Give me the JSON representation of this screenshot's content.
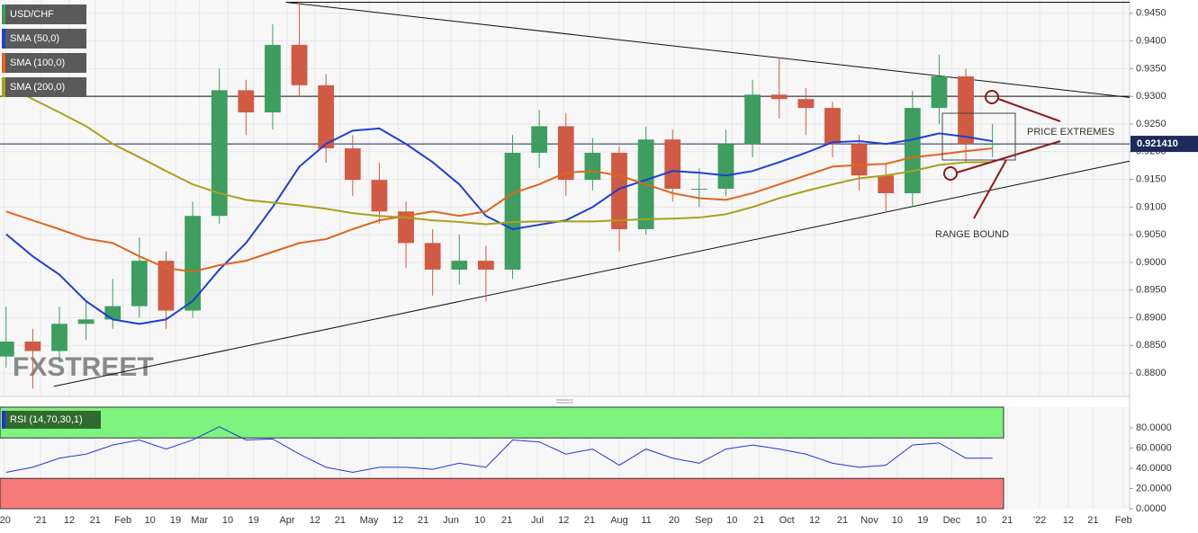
{
  "chart_data": [
    {
      "type": "candlestick",
      "symbol": "USD/CHF",
      "x": [
        -9,
        -2,
        5,
        12,
        19,
        26,
        33,
        40,
        47,
        54,
        61,
        68,
        75,
        82,
        89,
        96,
        103,
        110,
        117,
        124,
        131,
        138,
        145,
        152,
        159,
        166,
        173,
        180,
        187,
        194,
        201,
        208,
        215,
        222,
        229,
        236,
        243,
        250
      ],
      "open": [
        0.883,
        0.8857,
        0.884,
        0.8889,
        0.8897,
        0.8921,
        0.9003,
        0.8913,
        0.9084,
        0.9311,
        0.9271,
        0.9393,
        0.932,
        0.9206,
        0.9149,
        0.9092,
        0.9035,
        0.8987,
        0.9003,
        0.8987,
        0.9198,
        0.9246,
        0.9149,
        0.9198,
        0.906,
        0.9222,
        0.9133,
        0.9133,
        0.9214,
        0.9303,
        0.9295,
        0.9279,
        0.9214,
        0.9157,
        0.9125,
        0.9279,
        0.9336,
        0.9214
      ],
      "high": [
        0.892,
        0.888,
        0.892,
        0.893,
        0.897,
        0.9045,
        0.902,
        0.911,
        0.935,
        0.933,
        0.943,
        0.947,
        0.934,
        0.923,
        0.918,
        0.911,
        0.906,
        0.905,
        0.903,
        0.923,
        0.9275,
        0.927,
        0.9225,
        0.921,
        0.9245,
        0.924,
        0.917,
        0.924,
        0.933,
        0.937,
        0.9315,
        0.929,
        0.923,
        0.918,
        0.931,
        0.9375,
        0.935,
        0.925
      ],
      "low": [
        0.881,
        0.8772,
        0.882,
        0.886,
        0.888,
        0.89,
        0.888,
        0.89,
        0.907,
        0.923,
        0.924,
        0.93,
        0.918,
        0.912,
        0.907,
        0.899,
        0.894,
        0.896,
        0.893,
        0.897,
        0.917,
        0.912,
        0.913,
        0.902,
        0.905,
        0.911,
        0.91,
        0.912,
        0.919,
        0.926,
        0.923,
        0.919,
        0.913,
        0.909,
        0.91,
        0.925,
        0.918,
        0.919
      ],
      "close": [
        0.8857,
        0.884,
        0.8889,
        0.8897,
        0.8921,
        0.9003,
        0.8913,
        0.9084,
        0.9311,
        0.9271,
        0.9393,
        0.932,
        0.9206,
        0.9149,
        0.9092,
        0.9035,
        0.8987,
        0.9003,
        0.8987,
        0.9198,
        0.9246,
        0.9149,
        0.9198,
        0.906,
        0.9222,
        0.9133,
        0.9133,
        0.9214,
        0.9303,
        0.9295,
        0.9279,
        0.9214,
        0.9157,
        0.9125,
        0.9279,
        0.9336,
        0.9214,
        0.9214
      ],
      "color_up": "#3d9e5f",
      "color_down": "#d05a43",
      "series": [
        {
          "name": "SMA (50,0)",
          "color": "#1f3fd6",
          "values": [
            0.9051,
            0.9011,
            0.8978,
            0.893,
            0.8897,
            0.8889,
            0.8897,
            0.893,
            0.8987,
            0.9035,
            0.91,
            0.9173,
            0.9214,
            0.9238,
            0.9242,
            0.9214,
            0.9181,
            0.9141,
            0.9084,
            0.906,
            0.9068,
            0.9076,
            0.91,
            0.9133,
            0.9149,
            0.9165,
            0.9162,
            0.9157,
            0.9165,
            0.9181,
            0.9198,
            0.9217,
            0.9219,
            0.9214,
            0.9222,
            0.9233,
            0.9227,
            0.9219
          ]
        },
        {
          "name": "SMA (100,0)",
          "color": "#e0651e",
          "values": [
            0.9092,
            0.9076,
            0.906,
            0.9043,
            0.9035,
            0.9011,
            0.899,
            0.8983,
            0.8995,
            0.9003,
            0.9019,
            0.9035,
            0.9042,
            0.906,
            0.9076,
            0.9084,
            0.9092,
            0.9084,
            0.9092,
            0.9125,
            0.9141,
            0.9162,
            0.9165,
            0.9157,
            0.9141,
            0.9125,
            0.9116,
            0.9113,
            0.9125,
            0.9141,
            0.9157,
            0.9173,
            0.9176,
            0.9178,
            0.919,
            0.9195,
            0.9201,
            0.9206
          ]
        },
        {
          "name": "SMA (200,0)",
          "color": "#a8a11c",
          "values": [
            0.932,
            0.9295,
            0.9271,
            0.9246,
            0.9214,
            0.919,
            0.9165,
            0.9141,
            0.9125,
            0.9113,
            0.9108,
            0.9103,
            0.9097,
            0.9089,
            0.9084,
            0.9081,
            0.9076,
            0.9073,
            0.9069,
            0.9073,
            0.9074,
            0.9074,
            0.9074,
            0.9076,
            0.9078,
            0.9079,
            0.9081,
            0.9087,
            0.91,
            0.9116,
            0.9129,
            0.9141,
            0.9152,
            0.9157,
            0.9165,
            0.9176,
            0.9181,
            0.9181
          ]
        }
      ],
      "xlim": [
        -10.6,
        286
      ],
      "xticks": [
        {
          "value": -9.5,
          "label": "'20"
        },
        {
          "value": 0,
          "label": "'21"
        },
        {
          "value": 7.6,
          "label": "12"
        },
        {
          "value": 14.4,
          "label": "21"
        },
        {
          "value": 21.7,
          "label": "Feb"
        },
        {
          "value": 28.8,
          "label": "10"
        },
        {
          "value": 35.5,
          "label": "19"
        },
        {
          "value": 41.8,
          "label": "Mar"
        },
        {
          "value": 49.2,
          "label": "10"
        },
        {
          "value": 56,
          "label": "19"
        },
        {
          "value": 64.8,
          "label": "Apr"
        },
        {
          "value": 72.1,
          "label": "12"
        },
        {
          "value": 78.7,
          "label": "21"
        },
        {
          "value": 86.3,
          "label": "May"
        },
        {
          "value": 93.9,
          "label": "12"
        },
        {
          "value": 100.5,
          "label": "21"
        },
        {
          "value": 107.8,
          "label": "Jun"
        },
        {
          "value": 115.4,
          "label": "10"
        },
        {
          "value": 122.5,
          "label": "21"
        },
        {
          "value": 130.5,
          "label": "Jul"
        },
        {
          "value": 137.4,
          "label": "12"
        },
        {
          "value": 144.2,
          "label": "21"
        },
        {
          "value": 152,
          "label": "Aug"
        },
        {
          "value": 159.1,
          "label": "11"
        },
        {
          "value": 166.4,
          "label": "20"
        },
        {
          "value": 174.2,
          "label": "Sep"
        },
        {
          "value": 181.6,
          "label": "10"
        },
        {
          "value": 188.7,
          "label": "21"
        },
        {
          "value": 196,
          "label": "Oct"
        },
        {
          "value": 203.3,
          "label": "12"
        },
        {
          "value": 210.6,
          "label": "21"
        },
        {
          "value": 217.7,
          "label": "Nov"
        },
        {
          "value": 225,
          "label": "10"
        },
        {
          "value": 231.7,
          "label": "19"
        },
        {
          "value": 239.3,
          "label": "Dec"
        },
        {
          "value": 247,
          "label": "10"
        },
        {
          "value": 253.9,
          "label": "21"
        },
        {
          "value": 262.4,
          "label": "'22"
        },
        {
          "value": 269.9,
          "label": "12"
        },
        {
          "value": 276.4,
          "label": "21"
        },
        {
          "value": 284.4,
          "label": "Feb"
        }
      ],
      "ylim": [
        0.8758,
        0.9474
      ],
      "yticks": [
        {
          "value": 0.88,
          "label": "0.8800"
        },
        {
          "value": 0.885,
          "label": "0.8850"
        },
        {
          "value": 0.89,
          "label": "0.8900"
        },
        {
          "value": 0.895,
          "label": "0.8950"
        },
        {
          "value": 0.9,
          "label": "0.9000"
        },
        {
          "value": 0.905,
          "label": "0.9050"
        },
        {
          "value": 0.91,
          "label": "0.9100"
        },
        {
          "value": 0.915,
          "label": "0.9150"
        },
        {
          "value": 0.92,
          "label": "0.9200"
        },
        {
          "value": 0.925,
          "label": "0.9250"
        },
        {
          "value": 0.93,
          "label": "0.9300"
        },
        {
          "value": 0.935,
          "label": "0.9350"
        },
        {
          "value": 0.94,
          "label": "0.9400"
        },
        {
          "value": 0.945,
          "label": "0.9450"
        }
      ],
      "grid": true,
      "trendlines": [
        {
          "x": [
            64.5,
            286
          ],
          "y": [
            0.947,
            0.9298
          ]
        },
        {
          "x": [
            3.5,
            286
          ],
          "y": [
            0.8776,
            0.9183
          ]
        },
        {
          "x": [
            64.5,
            286
          ],
          "y": [
            0.947,
            0.947
          ]
        }
      ],
      "hlines": [
        0.93
      ],
      "last_price": {
        "value": 0.92141,
        "label": "0.921410"
      },
      "annotations": [
        "PRICE EXTREMES",
        "RANGE BOUND"
      ],
      "watermark": "FXSTREET"
    },
    {
      "type": "line",
      "x": [
        -9,
        -2,
        5,
        12,
        19,
        26,
        33,
        40,
        47,
        54,
        61,
        68,
        75,
        82,
        89,
        96,
        103,
        110,
        117,
        124,
        131,
        138,
        145,
        152,
        159,
        166,
        173,
        180,
        187,
        194,
        201,
        208,
        215,
        222,
        229,
        236,
        243,
        250
      ],
      "series": [
        {
          "name": "RSI (14,70,30,1)",
          "color": "#2233dd",
          "values": [
            36,
            41,
            50,
            54,
            63,
            68,
            59,
            68,
            81,
            68,
            69,
            54,
            41,
            36,
            41,
            41,
            39,
            45,
            41,
            68,
            66,
            54,
            59,
            43,
            59,
            50,
            45,
            59,
            63,
            59,
            54,
            45,
            41,
            43,
            63,
            65,
            50,
            50
          ]
        }
      ],
      "overbought": 70,
      "oversold": 30,
      "ylim": [
        0,
        100.4
      ],
      "yticks": [
        {
          "value": 0,
          "label": "0.0000"
        },
        {
          "value": 20,
          "label": "20.0000"
        },
        {
          "value": 40,
          "label": "40.0000"
        },
        {
          "value": 60,
          "label": "60.0000"
        },
        {
          "value": 80,
          "label": "80.0000"
        }
      ]
    }
  ]
}
